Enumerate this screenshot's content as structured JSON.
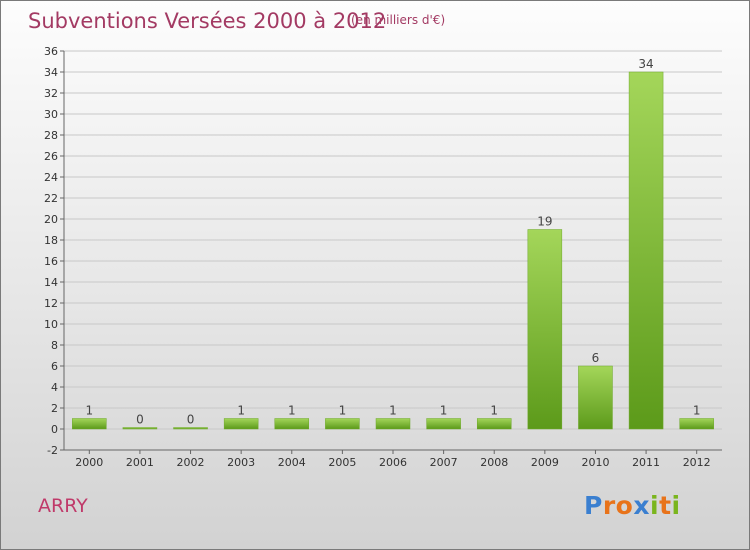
{
  "title": "Subventions Versées 2000 à 2012",
  "subtitle": "(en milliers d'€)",
  "commune": "ARRY",
  "logo": {
    "text": "Proxiti",
    "letters": [
      "P",
      "r",
      "o",
      "x",
      "i",
      "t",
      "i"
    ],
    "colors": [
      "#3a7fd0",
      "#e8731a",
      "#e8731a",
      "#3a7fd0",
      "#7ab51d",
      "#e8731a",
      "#7ab51d"
    ]
  },
  "colors": {
    "title": "#a33a63",
    "bar_light": "#a4d65a",
    "bar_dark": "#5c9a1a",
    "grid": "#c8c8c8"
  },
  "chart_data": {
    "type": "bar",
    "title": "Subventions Versées 2000 à 2012",
    "subtitle": "(en milliers d'€)",
    "categories": [
      "2000",
      "2001",
      "2002",
      "2003",
      "2004",
      "2005",
      "2006",
      "2007",
      "2008",
      "2009",
      "2010",
      "2011",
      "2012"
    ],
    "values": [
      1,
      0,
      0,
      1,
      1,
      1,
      1,
      1,
      1,
      19,
      6,
      34,
      1
    ],
    "ylim": [
      -2,
      36
    ],
    "yticks": [
      -2,
      0,
      2,
      4,
      6,
      8,
      10,
      12,
      14,
      16,
      18,
      20,
      22,
      24,
      26,
      28,
      30,
      32,
      34,
      36
    ],
    "grid": true
  }
}
